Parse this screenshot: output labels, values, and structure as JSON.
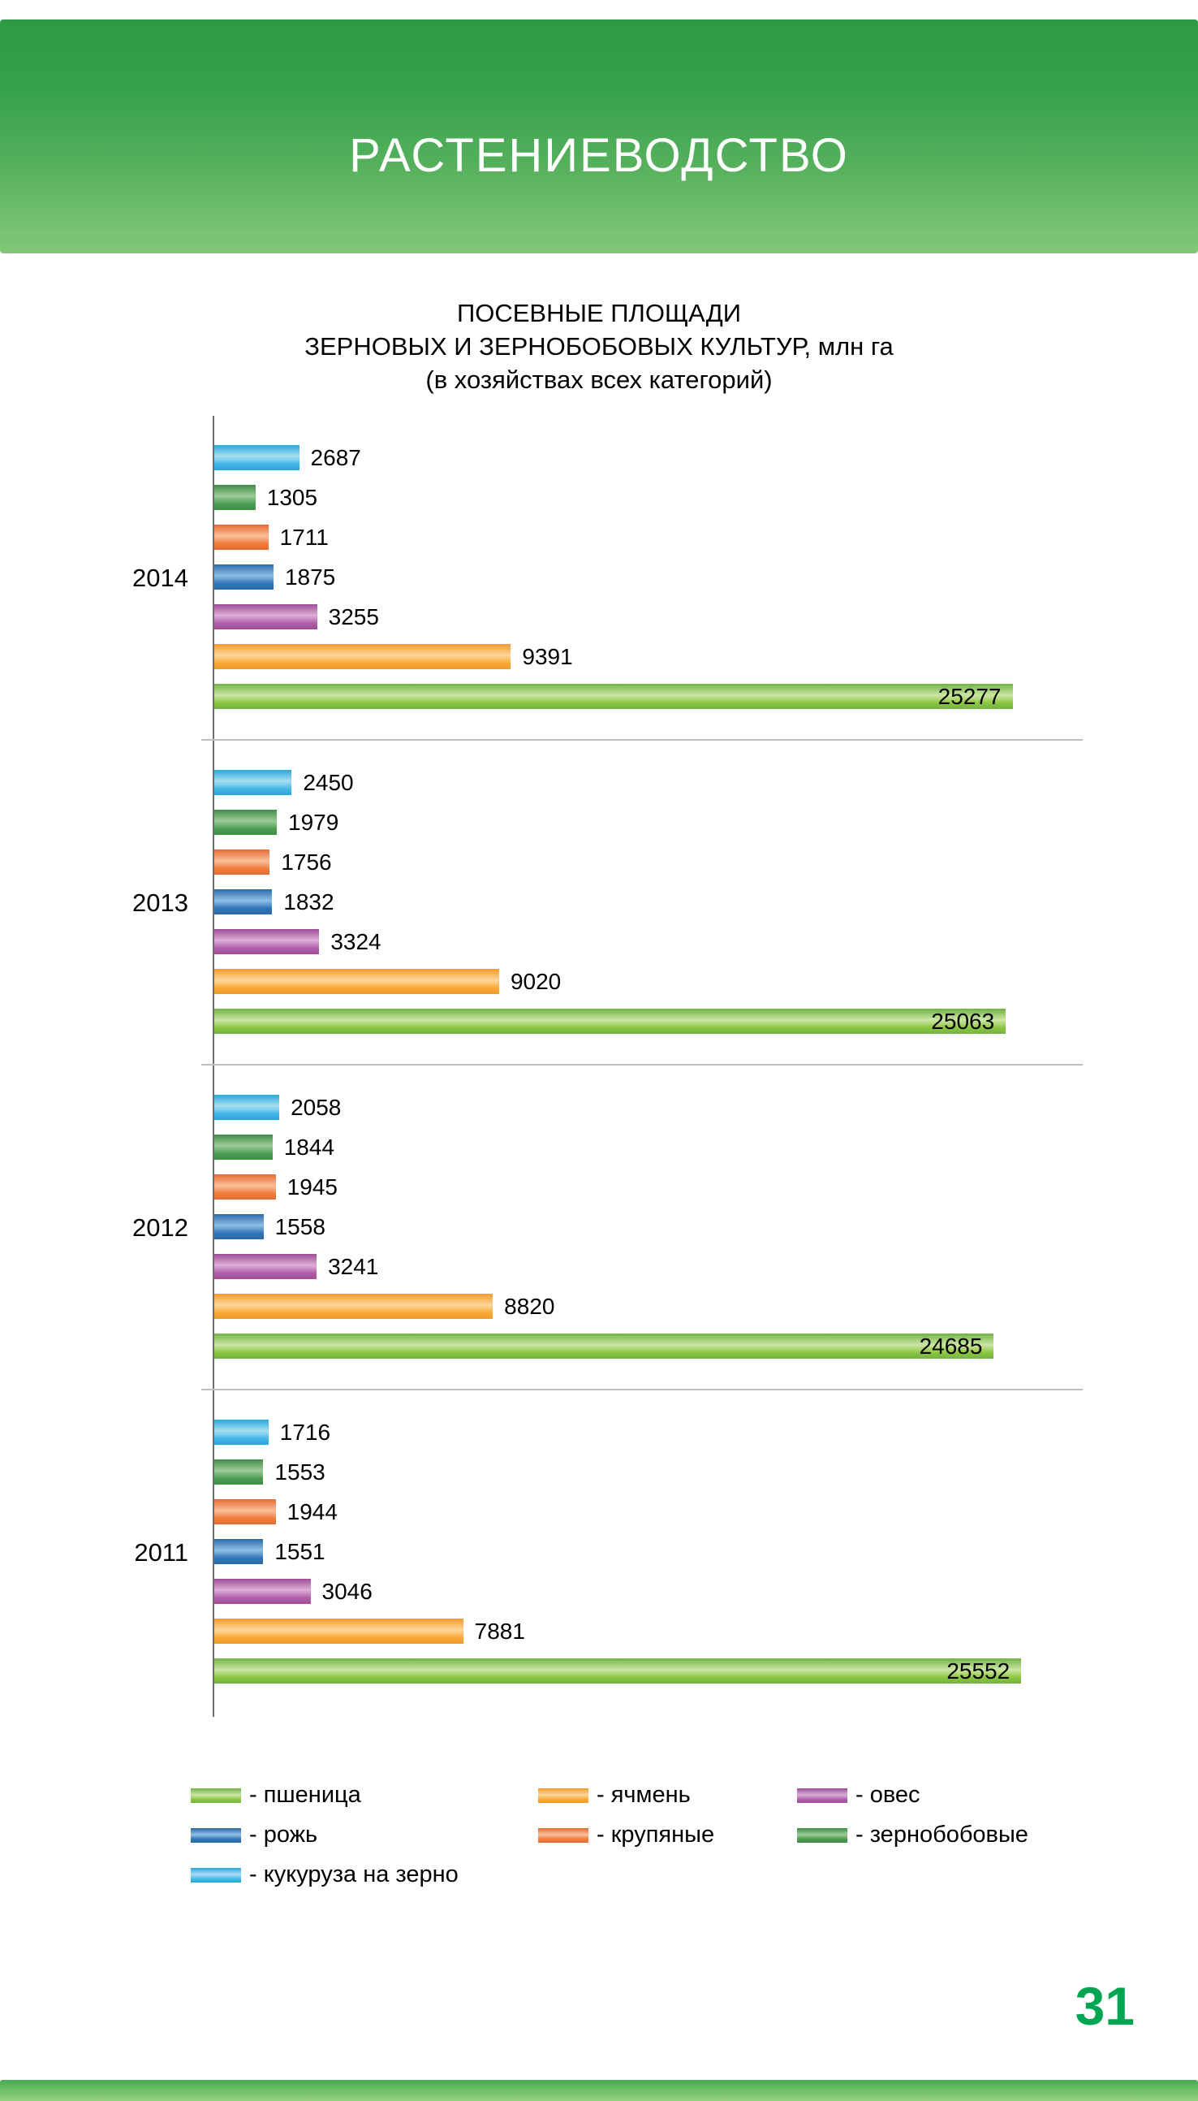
{
  "header": {
    "title": "РАСТЕНИЕВОДСТВО"
  },
  "chart_data": {
    "type": "bar",
    "orientation": "horizontal",
    "title_lines": [
      "ПОСЕВНЫЕ ПЛОЩАДИ",
      "ЗЕРНОВЫХ И ЗЕРНОБОБОВЫХ КУЛЬТУР, млн га",
      "(в хозяйствах всех категорий)"
    ],
    "xlim": [
      0,
      27500
    ],
    "grid": false,
    "inside_label_threshold": 20000,
    "series": [
      {
        "key": "corn",
        "name": "кукуруза на зерно",
        "legend_label": "- кукуруза на зерно",
        "colors": {
          "dark": "#2ba6d8",
          "mid": "#41b8e5",
          "light": "#aadef4"
        }
      },
      {
        "key": "legumes",
        "name": "зернобобовые",
        "legend_label": "- зернобобовые",
        "colors": {
          "dark": "#3f8c46",
          "mid": "#4d9c51",
          "light": "#9ccb9a"
        }
      },
      {
        "key": "groats",
        "name": "крупяные",
        "legend_label": "- крупяные",
        "colors": {
          "dark": "#e56a2f",
          "mid": "#f07d3d",
          "light": "#fbc09b"
        }
      },
      {
        "key": "rye",
        "name": "рожь",
        "legend_label": "- рожь",
        "colors": {
          "dark": "#2a6aa8",
          "mid": "#2f74b6",
          "light": "#8fc0e4"
        }
      },
      {
        "key": "oats",
        "name": "овес",
        "legend_label": "- овес",
        "colors": {
          "dark": "#9d4f97",
          "mid": "#b05fa9",
          "light": "#dbaed6"
        }
      },
      {
        "key": "barley",
        "name": "ячмень",
        "legend_label": "- ячмень",
        "colors": {
          "dark": "#f09b2e",
          "mid": "#faa834",
          "light": "#fdd79b"
        }
      },
      {
        "key": "wheat",
        "name": "пшеница",
        "legend_label": "- пшеница",
        "colors": {
          "dark": "#71b244",
          "mid": "#8cc63f",
          "light": "#cde6a5"
        }
      }
    ],
    "groups": [
      {
        "year": "2014",
        "values": [
          2687,
          1305,
          1711,
          1875,
          3255,
          9391,
          25277
        ]
      },
      {
        "year": "2013",
        "values": [
          2450,
          1979,
          1756,
          1832,
          3324,
          9020,
          25063
        ]
      },
      {
        "year": "2012",
        "values": [
          2058,
          1844,
          1945,
          1558,
          3241,
          8820,
          24685
        ]
      },
      {
        "year": "2011",
        "values": [
          1716,
          1553,
          1944,
          1551,
          3046,
          7881,
          25552
        ]
      }
    ],
    "legend_order": [
      "wheat",
      "barley",
      "oats",
      "rye",
      "groats",
      "legumes",
      "corn"
    ]
  },
  "footer": {
    "page_number": "31"
  }
}
